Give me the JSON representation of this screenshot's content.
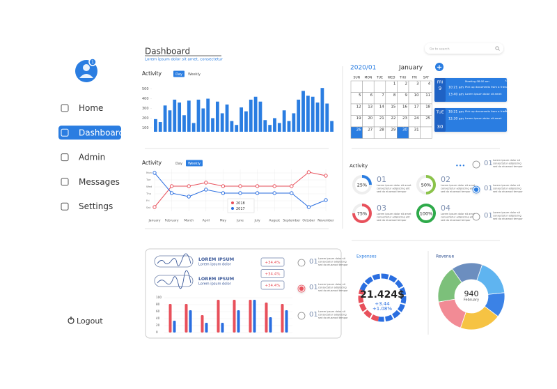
{
  "sidebar": {
    "badge": "1",
    "nav": [
      "Home",
      "Dashboard",
      "Admin",
      "Messages",
      "Settings"
    ],
    "active": 1,
    "logout": "Logout"
  },
  "header": {
    "title": "Dashboard",
    "subtitle": "Lorem ipsum dolor sit amet, consectetur",
    "search_placeholder": "Go to search"
  },
  "chart_data": [
    {
      "type": "bar",
      "title": "Activity",
      "tabs": [
        "Day",
        "Weekly"
      ],
      "active_tab": 0,
      "color": "#2a7de1",
      "values": [
        190,
        160,
        330,
        280,
        390,
        360,
        230,
        380,
        150,
        390,
        300,
        400,
        200,
        370,
        250,
        340,
        170,
        130,
        310,
        270,
        390,
        420,
        370,
        180,
        130,
        200,
        150,
        280,
        170,
        250,
        390,
        480,
        430,
        420,
        360,
        510,
        350,
        170
      ],
      "ylim": [
        60,
        540
      ],
      "yticks": [
        100,
        200,
        300,
        400,
        500
      ]
    },
    {
      "type": "line",
      "title": "Activity",
      "tabs": [
        "Day",
        "Weekly"
      ],
      "active_tab": 1,
      "legend": true,
      "categories": [
        "January",
        "February",
        "March",
        "April",
        "May",
        "June",
        "July",
        "August",
        "September",
        "October",
        "November"
      ],
      "series": [
        {
          "name": "2018",
          "color": "#e8505b",
          "values": [
            0.1,
            3.1,
            3.1,
            3.6,
            3.1,
            3.1,
            3.1,
            3.1,
            3.1,
            5.1,
            4.6
          ]
        },
        {
          "name": "2017",
          "color": "#2a6ee0",
          "values": [
            5,
            2.1,
            1.6,
            2.6,
            2.1,
            2.1,
            2.1,
            2.1,
            2.1,
            0.1,
            1.1
          ]
        }
      ],
      "ylim": [
        -0.5,
        5.5
      ],
      "yticks": [
        {
          "value": 0,
          "label": "Sat"
        },
        {
          "value": 1,
          "label": "Fri"
        },
        {
          "value": 2,
          "label": "Thu"
        },
        {
          "value": 3,
          "label": "Wed"
        },
        {
          "value": 4,
          "label": "Tue"
        },
        {
          "value": 5,
          "label": "Mon"
        }
      ],
      "grid": true
    },
    {
      "type": "ring",
      "title": "Activity",
      "menu": "•••",
      "values": [
        25,
        50,
        75,
        100
      ],
      "value_labels": [
        "25%",
        "50%",
        "75%",
        "100%"
      ],
      "colors": [
        "#2a7de1",
        "#8bc34a",
        "#e8505b",
        "#2eaa4a"
      ],
      "numbers": [
        "01",
        "02",
        "03",
        "04"
      ],
      "texts": [
        [
          "Lorem ipsum dolor sit amet",
          "consectetur adipiscing elit",
          "sed do eiusmod tempor"
        ],
        [
          "Lorem ipsum dolor sit amet",
          "consectetur adipiscing elit",
          "sed do eiusmod tempor"
        ],
        [
          "Lorem ipsum dolor sit amet",
          "consectetur adipiscing elit",
          "sed do eiusmod tempor"
        ],
        [
          "Lorem ipsum dolor sit amet",
          "consectetur adipiscing elit",
          "sed do eiusmod tempor"
        ]
      ]
    },
    {
      "type": "grouped_bar",
      "series": [
        {
          "color": "#e8505b",
          "values": [
            82,
            82,
            50,
            94,
            94,
            94,
            86,
            82
          ]
        },
        {
          "color": "#2a6ee0",
          "values": [
            34,
            64,
            28,
            28,
            64,
            94,
            44,
            64
          ]
        }
      ],
      "ylim": [
        0,
        100
      ],
      "yticks": [
        0,
        20,
        40,
        60,
        80,
        100
      ]
    },
    {
      "type": "donut",
      "title": "Expenses",
      "center": "21.424$",
      "center_lines": [
        "+3.44",
        "+1.08%"
      ],
      "values": [
        28,
        72
      ],
      "colors": [
        "#e8505b",
        "#2a6ee0"
      ]
    },
    {
      "type": "donut",
      "title": "Revenue",
      "center": "940",
      "center_lines": [
        "February"
      ],
      "values": [
        15,
        18,
        12,
        20,
        17,
        18
      ],
      "colors": [
        "#6c8ebf",
        "#5fb4f0",
        "#3b82e6",
        "#f6c343",
        "#f28b95",
        "#7cc07a"
      ]
    }
  ],
  "calendar": {
    "year_month": "2020/01",
    "month": "January",
    "add": "+",
    "weekdays": [
      "SUN",
      "MON",
      "TUE",
      "WED",
      "THU",
      "FRI",
      "SAT"
    ],
    "weeks": [
      [
        null,
        null,
        null,
        1,
        2,
        3,
        4
      ],
      [
        5,
        6,
        7,
        8,
        9,
        10,
        11
      ],
      [
        12,
        13,
        14,
        15,
        16,
        17,
        18
      ],
      [
        19,
        20,
        21,
        22,
        23,
        24,
        25
      ],
      [
        26,
        27,
        28,
        29,
        30,
        31,
        null
      ]
    ],
    "selected": [
      26,
      30
    ],
    "events": [
      {
        "day": "FRI",
        "date": "9",
        "title": "Meeting 08:00 am",
        "items": [
          {
            "time": "10:21 am",
            "text": "Pick up documents from a friend"
          },
          {
            "time": "13:40 am",
            "text": "Lorem ipsum dolor sit amet"
          }
        ]
      },
      {
        "day": "TUE",
        "date": "30",
        "items": [
          {
            "time": "18:21 am",
            "text": "Pick up documents from a friend"
          },
          {
            "time": "12:30 am",
            "text": "Lorem ipsum dolor sit amet"
          }
        ]
      }
    ]
  },
  "side_list": {
    "selected": 1,
    "items": [
      {
        "number": "01",
        "lines": [
          "Lorem ipsum dolor sit",
          "consectetur adipiscing",
          "sed do eiusmod tempor"
        ]
      },
      {
        "number": "01",
        "lines": [
          "Lorem ipsum dolor sit",
          "consectetur adipiscing",
          "sed do eiusmod tempor"
        ]
      },
      {
        "number": "01",
        "lines": [
          "Lorem ipsum dolor sit",
          "consectetur adipiscing",
          "sed do eiusmod tempor"
        ]
      }
    ]
  },
  "card": {
    "rows": [
      {
        "title": "LOREM IPSUM",
        "subtitle": "Lorem ipsum dolor"
      },
      {
        "title": "LOREM IPSUM",
        "subtitle": "Lorem ipsum dolor"
      }
    ],
    "changes": [
      "+34.4%",
      "+34.4%",
      "+34.4%"
    ]
  },
  "card_list": {
    "selected": 1,
    "items": [
      {
        "number": "01",
        "lines": [
          "Lorem ipsum dolor sit",
          "consectetur adipiscing",
          "sed do eiusmod tempor"
        ]
      },
      {
        "number": "01",
        "lines": [
          "Lorem ipsum dolor sit",
          "consectetur adipiscing",
          "sed do eiusmod tempor"
        ]
      },
      {
        "number": "01",
        "lines": [
          "Lorem ipsum dolor sit",
          "consectetur adipiscing",
          "sed do eiusmod tempor"
        ]
      }
    ]
  }
}
